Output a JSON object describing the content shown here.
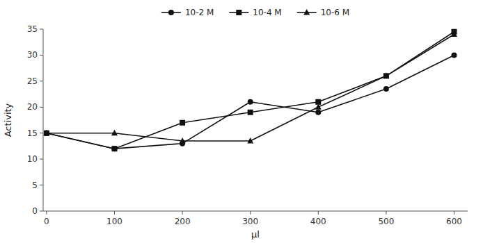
{
  "chart_data": {
    "type": "line",
    "xlabel": "µl",
    "ylabel": "Activity",
    "x": [
      0,
      100,
      200,
      300,
      400,
      500,
      600
    ],
    "series": [
      {
        "name": "10-2 M",
        "color": "#111111",
        "marker": "circle",
        "values": [
          15,
          12,
          13,
          21,
          19,
          23.5,
          30
        ]
      },
      {
        "name": "10-4 M",
        "color": "#111111",
        "marker": "square",
        "values": [
          15,
          12,
          17,
          19,
          21,
          26,
          34.5
        ]
      },
      {
        "name": "10-6 M",
        "color": "#111111",
        "marker": "triangle",
        "values": [
          15,
          15,
          13.5,
          13.5,
          20,
          26,
          34
        ]
      }
    ],
    "xlim": [
      -5,
      620
    ],
    "ylim": [
      0,
      35
    ],
    "xticks": [
      0,
      100,
      200,
      300,
      400,
      500,
      600
    ],
    "yticks": [
      0,
      5,
      10,
      15,
      20,
      25,
      30,
      35
    ],
    "legend": "top"
  }
}
